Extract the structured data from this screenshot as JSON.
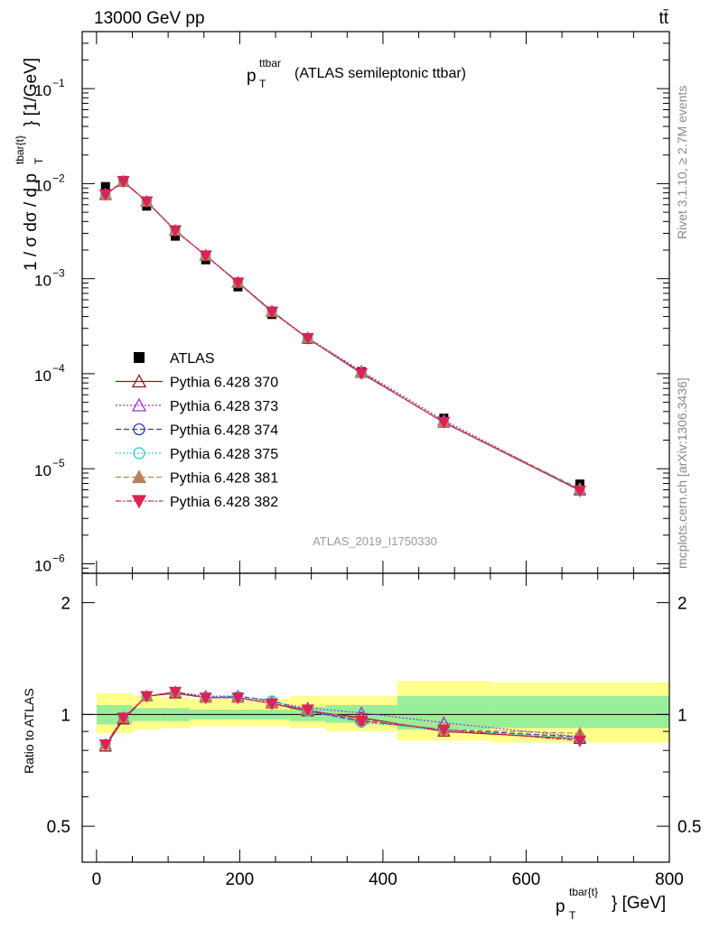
{
  "header": {
    "energy_label": "13000 GeV pp",
    "process_label": "tt̄"
  },
  "side_labels": {
    "rivet": "Rivet 3.1.10, ≥ 2.7M events",
    "mcplots": "mcplots.cern.ch [arXiv:1306.3436]"
  },
  "main_plot": {
    "title_sym": "p",
    "title_sup": "ttbar",
    "title_sub": "T",
    "title_rest": "(ATLAS semileptonic ttbar)",
    "ylabel": "1 / σ dσ / d p",
    "ylabel_sup": "tbar{t}",
    "ylabel_sub": "T",
    "ylabel_unit": "} [1/GeV]",
    "watermark": "ATLAS_2019_I1750330",
    "ytick_labels": [
      {
        "base": "10",
        "exp": "−1"
      },
      {
        "base": "10",
        "exp": "−2"
      },
      {
        "base": "10",
        "exp": "−3"
      },
      {
        "base": "10",
        "exp": "−4"
      },
      {
        "base": "10",
        "exp": "−5"
      },
      {
        "base": "10",
        "exp": "−6"
      }
    ]
  },
  "ratio_plot": {
    "ylabel": "Ratio to ATLAS",
    "ytick_labels": [
      "2",
      "1",
      "0.5"
    ],
    "ytick_labels_right": [
      "2",
      "1",
      "0.5"
    ]
  },
  "xaxis": {
    "tick_labels": [
      "0",
      "200",
      "400",
      "600",
      "800"
    ],
    "label_sym": "p",
    "label_sup": "tbar{t}",
    "label_sub": "T",
    "label_unit": "} [GeV]"
  },
  "legend": {
    "entries": [
      "ATLAS",
      "Pythia 6.428 370",
      "Pythia 6.428 373",
      "Pythia 6.428 374",
      "Pythia 6.428 375",
      "Pythia 6.428 381",
      "Pythia 6.428 382"
    ]
  },
  "chart_data": {
    "type": "scatter",
    "title": "p_T^ttbar (ATLAS semileptonic ttbar)",
    "xlabel": "p_T^tbar{t} [GeV]",
    "ylabel": "1 / σ dσ / d p_T^tbar{t} [1/GeV]",
    "xlim": [
      -20,
      800
    ],
    "ylim_main": [
      7.94e-07,
      0.398
    ],
    "yscale_main": "log",
    "ylim_ratio": [
      0.4,
      2.4
    ],
    "yscale_ratio": "log",
    "bin_edges": [
      0,
      25,
      50,
      90,
      130,
      175,
      220,
      270,
      320,
      420,
      550,
      800
    ],
    "x": [
      12.5,
      37.5,
      70,
      110,
      152.5,
      197.5,
      245,
      295,
      370,
      485,
      675
    ],
    "data": {
      "name": "ATLAS",
      "values": [
        0.0093,
        0.0108,
        0.0058,
        0.0028,
        0.00158,
        0.00082,
        0.00042,
        0.00023,
        0.000105,
        3.4e-05,
        6.9e-06
      ],
      "ratio_band_stat": [
        [
          0.94,
          1.06
        ],
        [
          0.94,
          1.06
        ],
        [
          0.96,
          1.04
        ],
        [
          0.96,
          1.04
        ],
        [
          0.97,
          1.03
        ],
        [
          0.97,
          1.03
        ],
        [
          0.97,
          1.03
        ],
        [
          0.96,
          1.05
        ],
        [
          0.95,
          1.06
        ],
        [
          0.91,
          1.12
        ],
        [
          0.92,
          1.12
        ]
      ],
      "ratio_band_total": [
        [
          0.89,
          1.14
        ],
        [
          0.89,
          1.14
        ],
        [
          0.91,
          1.12
        ],
        [
          0.92,
          1.11
        ],
        [
          0.93,
          1.1
        ],
        [
          0.93,
          1.1
        ],
        [
          0.93,
          1.1
        ],
        [
          0.92,
          1.12
        ],
        [
          0.9,
          1.12
        ],
        [
          0.85,
          1.23
        ],
        [
          0.84,
          1.22
        ]
      ]
    },
    "series": [
      {
        "name": "Pythia 6.428 370",
        "color": "#8b1a1a",
        "marker": "triangle-up-open",
        "dash": "",
        "ratio": [
          0.82,
          0.97,
          1.12,
          1.14,
          1.11,
          1.11,
          1.07,
          1.02,
          0.98,
          0.9,
          0.86
        ]
      },
      {
        "name": "Pythia 6.428 373",
        "color": "#9933cc",
        "marker": "triangle-up-open",
        "dash": "2,2",
        "ratio": [
          0.83,
          0.98,
          1.12,
          1.15,
          1.12,
          1.12,
          1.08,
          1.04,
          1.01,
          0.95,
          0.87
        ]
      },
      {
        "name": "Pythia 6.428 374",
        "color": "#3333cc",
        "marker": "circle-open",
        "dash": "6,3",
        "ratio": [
          0.83,
          0.98,
          1.12,
          1.15,
          1.11,
          1.12,
          1.09,
          1.02,
          0.96,
          0.91,
          0.87
        ]
      },
      {
        "name": "Pythia 6.428 375",
        "color": "#33cccc",
        "marker": "circle-open",
        "dash": "2,2",
        "ratio": [
          0.83,
          0.98,
          1.12,
          1.15,
          1.11,
          1.12,
          1.09,
          1.02,
          0.95,
          0.91,
          0.86
        ]
      },
      {
        "name": "Pythia 6.428 381",
        "color": "#b5835a",
        "marker": "triangle-up-filled",
        "dash": "6,3",
        "ratio": [
          0.83,
          0.98,
          1.12,
          1.15,
          1.11,
          1.11,
          1.07,
          1.03,
          0.97,
          0.91,
          0.89
        ]
      },
      {
        "name": "Pythia 6.428 382",
        "color": "#dd2255",
        "marker": "triangle-down-filled",
        "dash": "6,2,2,2",
        "ratio": [
          0.83,
          0.98,
          1.12,
          1.15,
          1.11,
          1.11,
          1.07,
          1.03,
          0.96,
          0.91,
          0.85
        ]
      }
    ]
  }
}
